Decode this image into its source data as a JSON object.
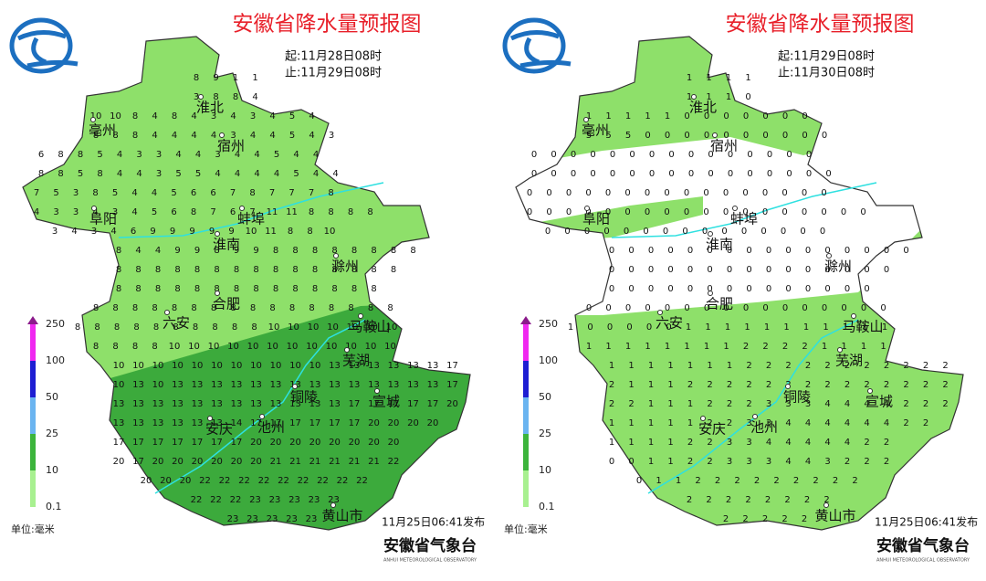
{
  "panels": [
    {
      "title": "安徽省降水量预报图",
      "start": "起:11月28日08时",
      "end": "止:11月29日08时",
      "cities": [
        "淮北",
        "宿州",
        "亳州",
        "阜阳",
        "蚌埠",
        "淮南",
        "滁州",
        "合肥",
        "六安",
        "马鞍山",
        "芜湖",
        "铜陵",
        "宣城",
        "安庆",
        "池州",
        "黄山市"
      ],
      "grid": [
        [
          8,
          9,
          1,
          1
        ],
        [
          3,
          8,
          8,
          4
        ],
        [
          10,
          10,
          8,
          4,
          8,
          4,
          3,
          4,
          3,
          4,
          5,
          4
        ],
        [
          8,
          8,
          8,
          4,
          4,
          4,
          4,
          3,
          4,
          4,
          5,
          4,
          3
        ],
        [
          6,
          8,
          8,
          5,
          4,
          3,
          3,
          4,
          4,
          3,
          4,
          4,
          5,
          4,
          4
        ],
        [
          8,
          8,
          5,
          8,
          4,
          4,
          3,
          5,
          5,
          4,
          4,
          4,
          4,
          5,
          4,
          4
        ],
        [
          7,
          5,
          3,
          8,
          5,
          4,
          4,
          5,
          6,
          6,
          7,
          8,
          7,
          7,
          7,
          8
        ],
        [
          4,
          3,
          3,
          4,
          3,
          4,
          5,
          6,
          8,
          7,
          6,
          7,
          11,
          11,
          8,
          8,
          8,
          8
        ],
        [
          3,
          4,
          3,
          4,
          6,
          9,
          9,
          9,
          9,
          9,
          10,
          11,
          8,
          8,
          10
        ],
        [
          8,
          4,
          4,
          9,
          9,
          8,
          9,
          9,
          8,
          8,
          8,
          8,
          8,
          8,
          8,
          8
        ],
        [
          8,
          8,
          8,
          8,
          8,
          8,
          8,
          8,
          8,
          8,
          8,
          8,
          8,
          8,
          8
        ],
        [
          8,
          8,
          8,
          8,
          8,
          8,
          8,
          8,
          8,
          8,
          8,
          8,
          8,
          8
        ],
        [
          8,
          8,
          8,
          8,
          8,
          8,
          8,
          8,
          8,
          8,
          8,
          8,
          8,
          8,
          8,
          8
        ],
        [
          8,
          8,
          8,
          8,
          8,
          8,
          8,
          8,
          8,
          8,
          10,
          10,
          10,
          10,
          10,
          10,
          10
        ],
        [
          8,
          8,
          8,
          8,
          10,
          10,
          10,
          10,
          10,
          10,
          10,
          10,
          10,
          10,
          10,
          10
        ],
        [
          10,
          10,
          10,
          10,
          10,
          10,
          10,
          10,
          10,
          10,
          10,
          13,
          13,
          13,
          13,
          13,
          13,
          17
        ],
        [
          10,
          13,
          10,
          13,
          13,
          13,
          13,
          13,
          13,
          13,
          13,
          13,
          13,
          13,
          13,
          13,
          13,
          17
        ],
        [
          13,
          13,
          13,
          13,
          13,
          13,
          13,
          13,
          13,
          13,
          13,
          13,
          17,
          17,
          17,
          17,
          17,
          20
        ],
        [
          13,
          13,
          13,
          13,
          13,
          13,
          14,
          17,
          17,
          17,
          17,
          17,
          17,
          20,
          20,
          20,
          20
        ],
        [
          17,
          17,
          17,
          17,
          17,
          17,
          17,
          20,
          20,
          20,
          20,
          20,
          20,
          20,
          20
        ],
        [
          20,
          17,
          20,
          20,
          20,
          20,
          20,
          20,
          21,
          21,
          21,
          21,
          21,
          21,
          22
        ],
        [
          20,
          20,
          20,
          22,
          22,
          22,
          22,
          22,
          22,
          22,
          22,
          22
        ],
        [
          22,
          22,
          22,
          23,
          23,
          23,
          23,
          23
        ],
        [
          23,
          23,
          23,
          23,
          23
        ]
      ],
      "legend": [
        "250",
        "100",
        "50",
        "25",
        "10",
        "0.1"
      ],
      "unit": "单位:毫米",
      "issued": "11月25日06:41发布",
      "org": "安徽省气象台",
      "org_en": "ANHUI METEOROLOGICAL OBSERVATORY"
    },
    {
      "title": "安徽省降水量预报图",
      "start": "起:11月29日08时",
      "end": "止:11月30日08时",
      "cities": [
        "淮北",
        "宿州",
        "亳州",
        "阜阳",
        "蚌埠",
        "淮南",
        "滁州",
        "合肥",
        "六安",
        "马鞍山",
        "芜湖",
        "铜陵",
        "宣城",
        "安庆",
        "池州",
        "黄山市"
      ],
      "grid": [
        [
          1,
          1,
          1,
          1
        ],
        [
          1,
          1,
          1,
          0
        ],
        [
          1,
          1,
          1,
          1,
          1,
          0,
          0,
          0,
          0,
          0,
          0,
          0
        ],
        [
          5,
          5,
          5,
          0,
          0,
          0,
          0,
          0,
          0,
          0,
          0,
          0,
          0
        ],
        [
          0,
          0,
          0,
          0,
          0,
          0,
          0,
          0,
          0,
          0,
          0,
          0,
          0,
          0,
          0
        ],
        [
          0,
          0,
          0,
          0,
          0,
          0,
          0,
          0,
          0,
          0,
          0,
          0,
          0,
          0,
          0,
          0
        ],
        [
          0,
          0,
          0,
          0,
          0,
          0,
          0,
          0,
          0,
          0,
          0,
          0,
          0,
          0,
          0,
          0
        ],
        [
          0,
          0,
          0,
          0,
          0,
          0,
          0,
          0,
          0,
          0,
          0,
          0,
          0,
          0,
          0,
          0,
          0,
          0
        ],
        [
          0,
          0,
          0,
          0,
          0,
          0,
          0,
          0,
          0,
          0,
          0,
          0,
          0,
          0,
          0
        ],
        [
          0,
          0,
          0,
          0,
          0,
          0,
          0,
          0,
          0,
          0,
          0,
          0,
          0,
          0,
          0,
          0
        ],
        [
          0,
          0,
          0,
          0,
          0,
          0,
          0,
          0,
          0,
          0,
          0,
          0,
          0,
          0,
          0
        ],
        [
          0,
          0,
          0,
          0,
          0,
          0,
          0,
          0,
          0,
          0,
          0,
          0,
          0,
          0
        ],
        [
          0,
          0,
          0,
          0,
          0,
          0,
          0,
          0,
          0,
          0,
          0,
          0,
          0,
          0,
          0,
          0
        ],
        [
          1,
          0,
          0,
          0,
          0,
          0,
          1,
          1,
          1,
          1,
          1,
          1,
          1,
          1,
          1,
          1,
          1
        ],
        [
          1,
          1,
          1,
          1,
          1,
          1,
          1,
          1,
          2,
          2,
          2,
          2,
          1,
          1,
          1,
          1
        ],
        [
          1,
          1,
          1,
          1,
          1,
          1,
          1,
          2,
          2,
          2,
          2,
          2,
          2,
          2,
          2,
          2,
          2,
          2
        ],
        [
          2,
          1,
          1,
          1,
          2,
          2,
          2,
          2,
          2,
          2,
          2,
          2,
          2,
          2,
          2,
          2,
          2,
          2
        ],
        [
          2,
          2,
          1,
          1,
          1,
          2,
          2,
          2,
          3,
          3,
          3,
          4,
          4,
          4,
          4,
          2,
          2,
          2
        ],
        [
          1,
          1,
          1,
          1,
          1,
          2,
          2,
          3,
          3,
          4,
          4,
          4,
          4,
          4,
          4,
          2,
          2
        ],
        [
          1,
          1,
          1,
          1,
          2,
          2,
          3,
          3,
          4,
          4,
          4,
          4,
          4,
          2,
          2
        ],
        [
          0,
          0,
          1,
          1,
          2,
          2,
          3,
          3,
          3,
          4,
          4,
          3,
          2,
          2,
          2
        ],
        [
          0,
          1,
          1,
          2,
          2,
          2,
          2,
          2,
          2,
          2,
          2,
          2
        ],
        [
          2,
          2,
          2,
          2,
          2,
          2,
          2,
          2
        ],
        [
          2,
          2,
          2,
          2,
          2
        ]
      ],
      "legend": [
        "250",
        "100",
        "50",
        "25",
        "10",
        "0.1"
      ],
      "unit": "单位:毫米",
      "issued": "11月25日06:41发布",
      "org": "安徽省气象台",
      "org_en": "ANHUI METEOROLOGICAL OBSERVATORY"
    }
  ]
}
